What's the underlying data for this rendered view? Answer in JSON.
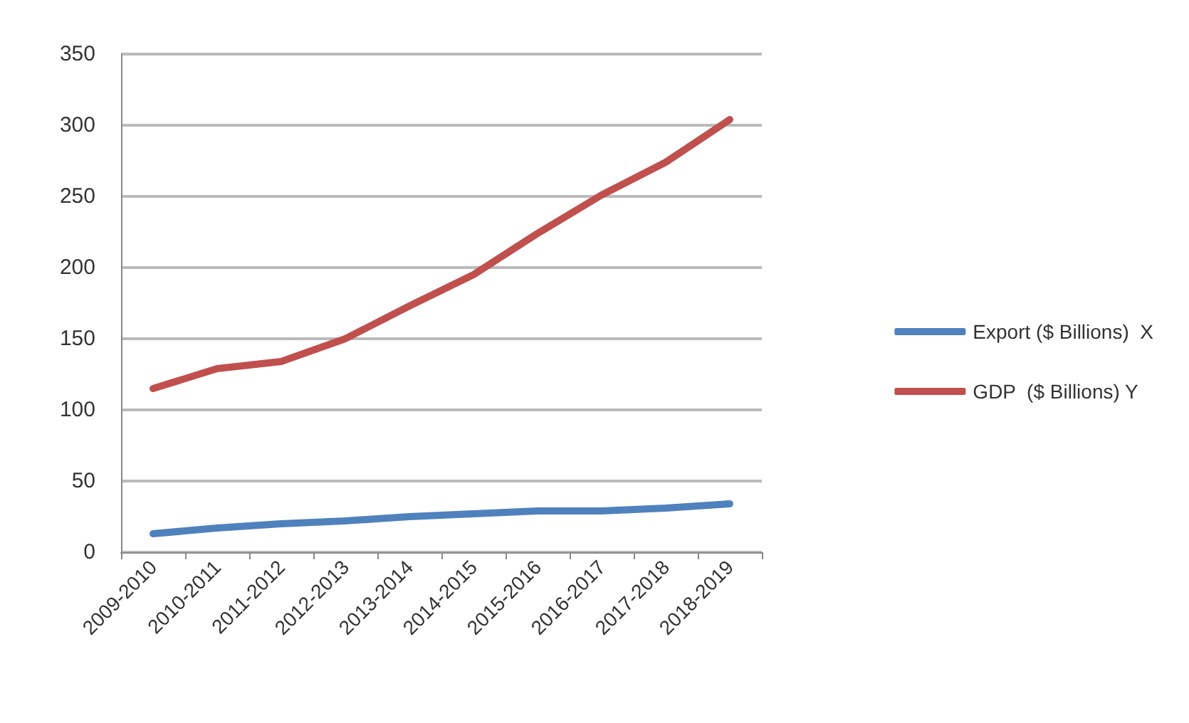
{
  "chart_data": {
    "type": "line",
    "categories": [
      "2009-2010",
      "2010-2011",
      "2011-2012",
      "2012-2013",
      "2013-2014",
      "2014-2015",
      "2015-2016",
      "2016-2017",
      "2017-2018",
      "2018-2019"
    ],
    "series": [
      {
        "name": "Export ($ Billions)  X",
        "color": "#4f81bd",
        "values": [
          13,
          17,
          20,
          22,
          25,
          27,
          29,
          29,
          31,
          34
        ]
      },
      {
        "name": "GDP  ($ Billions) Y",
        "color": "#c0504d",
        "values": [
          115,
          129,
          134,
          150,
          173,
          195,
          224,
          251,
          274,
          304
        ]
      }
    ],
    "ylim": [
      0,
      350
    ],
    "yticks": [
      0,
      50,
      100,
      150,
      200,
      250,
      300,
      350
    ],
    "grid": "y",
    "legend": "right",
    "marker": "none",
    "line_style": "solid"
  }
}
